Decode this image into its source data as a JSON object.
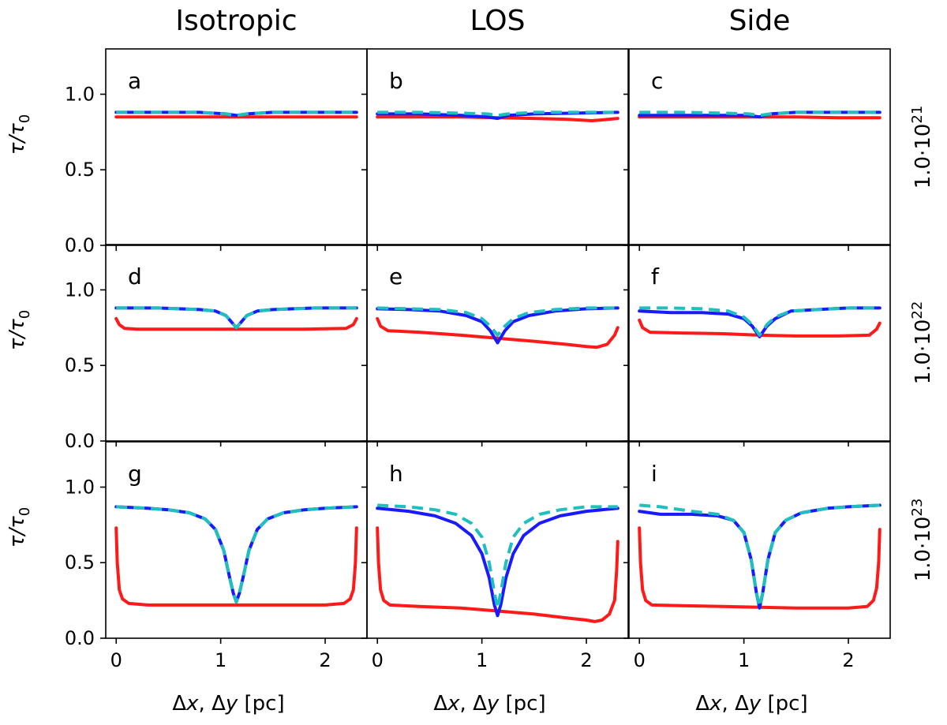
{
  "chart_data": {
    "type": "line",
    "layout": "3x3 grid",
    "column_titles": [
      "Isotropic",
      "LOS",
      "Side"
    ],
    "row_labels": [
      {
        "mantissa": "1.0",
        "exponent": "21",
        "text": "1.0·10^21"
      },
      {
        "mantissa": "1.0",
        "exponent": "22",
        "text": "1.0·10^22"
      },
      {
        "mantissa": "1.0",
        "exponent": "23",
        "text": "1.0·10^23"
      }
    ],
    "ylabel": {
      "base": "τ/τ",
      "subscript": "0"
    },
    "xlabel": {
      "prefix": "Δ",
      "var1": "x",
      "sep": ", Δ",
      "var2": "y",
      "unit": " [pc]"
    },
    "xlim": [
      -0.1,
      2.4
    ],
    "ylim": [
      0.0,
      1.3
    ],
    "xticks": [
      0,
      1,
      2
    ],
    "xtick_labels": [
      "0",
      "1",
      "2"
    ],
    "yticks": [
      0.0,
      0.5,
      1.0
    ],
    "ytick_labels": [
      "0.0",
      "0.5",
      "1.0"
    ],
    "series_styles": [
      {
        "name": "red",
        "color": "#ff1a1a",
        "dash": "solid"
      },
      {
        "name": "blue",
        "color": "#1a1aff",
        "dash": "solid"
      },
      {
        "name": "cyan",
        "color": "#1fbfbf",
        "dash": "dashed"
      }
    ],
    "panels": [
      {
        "letter": "a",
        "row": 0,
        "col": 0,
        "series": [
          {
            "name": "red",
            "x": [
              0,
              0.3,
              0.6,
              0.9,
              1.15,
              1.4,
              1.7,
              2.0,
              2.3
            ],
            "y": [
              0.85,
              0.85,
              0.85,
              0.85,
              0.85,
              0.85,
              0.85,
              0.85,
              0.85
            ]
          },
          {
            "name": "blue",
            "x": [
              0,
              0.4,
              0.8,
              1.05,
              1.15,
              1.25,
              1.5,
              1.9,
              2.3
            ],
            "y": [
              0.88,
              0.88,
              0.88,
              0.87,
              0.86,
              0.87,
              0.88,
              0.88,
              0.88
            ]
          },
          {
            "name": "cyan",
            "x": [
              0,
              0.4,
              0.8,
              1.05,
              1.15,
              1.25,
              1.5,
              1.9,
              2.3
            ],
            "y": [
              0.88,
              0.88,
              0.88,
              0.87,
              0.86,
              0.87,
              0.88,
              0.88,
              0.88
            ]
          }
        ]
      },
      {
        "letter": "b",
        "row": 0,
        "col": 1,
        "series": [
          {
            "name": "red",
            "x": [
              0,
              0.4,
              0.8,
              1.15,
              1.5,
              1.8,
              2.05,
              2.15,
              2.3
            ],
            "y": [
              0.85,
              0.85,
              0.85,
              0.845,
              0.84,
              0.835,
              0.825,
              0.83,
              0.84
            ]
          },
          {
            "name": "blue",
            "x": [
              0,
              0.4,
              0.8,
              1.05,
              1.15,
              1.25,
              1.5,
              1.9,
              2.3
            ],
            "y": [
              0.87,
              0.87,
              0.86,
              0.85,
              0.84,
              0.86,
              0.87,
              0.875,
              0.88
            ]
          },
          {
            "name": "cyan",
            "x": [
              0,
              0.4,
              0.8,
              1.05,
              1.15,
              1.25,
              1.5,
              1.9,
              2.3
            ],
            "y": [
              0.88,
              0.88,
              0.875,
              0.87,
              0.86,
              0.87,
              0.88,
              0.88,
              0.88
            ]
          }
        ]
      },
      {
        "letter": "c",
        "row": 0,
        "col": 2,
        "series": [
          {
            "name": "red",
            "x": [
              0,
              0.4,
              0.8,
              1.15,
              1.5,
              1.9,
              2.3
            ],
            "y": [
              0.85,
              0.85,
              0.85,
              0.85,
              0.85,
              0.845,
              0.845
            ]
          },
          {
            "name": "blue",
            "x": [
              0,
              0.4,
              0.8,
              1.05,
              1.15,
              1.25,
              1.5,
              1.9,
              2.3
            ],
            "y": [
              0.86,
              0.86,
              0.86,
              0.86,
              0.85,
              0.87,
              0.88,
              0.88,
              0.88
            ]
          },
          {
            "name": "cyan",
            "x": [
              0,
              0.4,
              0.8,
              1.05,
              1.15,
              1.25,
              1.5,
              1.9,
              2.3
            ],
            "y": [
              0.88,
              0.88,
              0.875,
              0.87,
              0.86,
              0.87,
              0.88,
              0.88,
              0.88
            ]
          }
        ]
      },
      {
        "letter": "d",
        "row": 1,
        "col": 0,
        "series": [
          {
            "name": "red",
            "x": [
              0,
              0.03,
              0.08,
              0.2,
              0.6,
              1.0,
              1.15,
              1.4,
              1.8,
              2.2,
              2.27,
              2.3
            ],
            "y": [
              0.81,
              0.77,
              0.745,
              0.74,
              0.74,
              0.74,
              0.74,
              0.74,
              0.74,
              0.745,
              0.77,
              0.81
            ]
          },
          {
            "name": "blue",
            "x": [
              0,
              0.4,
              0.8,
              0.95,
              1.05,
              1.1,
              1.15,
              1.2,
              1.25,
              1.35,
              1.5,
              1.9,
              2.3
            ],
            "y": [
              0.88,
              0.88,
              0.87,
              0.86,
              0.83,
              0.79,
              0.75,
              0.79,
              0.83,
              0.86,
              0.87,
              0.88,
              0.88
            ]
          },
          {
            "name": "cyan",
            "x": [
              0,
              0.4,
              0.8,
              0.95,
              1.05,
              1.1,
              1.15,
              1.2,
              1.25,
              1.35,
              1.5,
              1.9,
              2.3
            ],
            "y": [
              0.88,
              0.88,
              0.87,
              0.86,
              0.83,
              0.79,
              0.75,
              0.79,
              0.83,
              0.86,
              0.87,
              0.88,
              0.88
            ]
          }
        ]
      },
      {
        "letter": "e",
        "row": 1,
        "col": 1,
        "series": [
          {
            "name": "red",
            "x": [
              0,
              0.03,
              0.1,
              0.4,
              0.8,
              1.15,
              1.5,
              1.8,
              2.0,
              2.1,
              2.2,
              2.27,
              2.3
            ],
            "y": [
              0.81,
              0.76,
              0.73,
              0.72,
              0.7,
              0.68,
              0.66,
              0.64,
              0.625,
              0.62,
              0.64,
              0.7,
              0.75
            ]
          },
          {
            "name": "blue",
            "x": [
              0,
              0.3,
              0.6,
              0.85,
              1.0,
              1.08,
              1.15,
              1.22,
              1.3,
              1.45,
              1.7,
              2.0,
              2.3
            ],
            "y": [
              0.875,
              0.87,
              0.86,
              0.83,
              0.79,
              0.73,
              0.65,
              0.73,
              0.79,
              0.83,
              0.86,
              0.875,
              0.88
            ]
          },
          {
            "name": "cyan",
            "x": [
              0,
              0.3,
              0.6,
              0.85,
              1.0,
              1.08,
              1.15,
              1.22,
              1.3,
              1.45,
              1.7,
              2.0,
              2.3
            ],
            "y": [
              0.88,
              0.875,
              0.87,
              0.85,
              0.81,
              0.76,
              0.7,
              0.76,
              0.81,
              0.85,
              0.87,
              0.88,
              0.88
            ]
          }
        ]
      },
      {
        "letter": "f",
        "row": 1,
        "col": 2,
        "series": [
          {
            "name": "red",
            "x": [
              0,
              0.03,
              0.1,
              0.4,
              0.8,
              1.15,
              1.5,
              1.9,
              2.2,
              2.27,
              2.3
            ],
            "y": [
              0.8,
              0.75,
              0.72,
              0.715,
              0.71,
              0.7,
              0.695,
              0.695,
              0.7,
              0.74,
              0.78
            ]
          },
          {
            "name": "blue",
            "x": [
              0,
              0.3,
              0.6,
              0.85,
              1.0,
              1.08,
              1.15,
              1.22,
              1.3,
              1.45,
              1.7,
              2.0,
              2.3
            ],
            "y": [
              0.86,
              0.85,
              0.85,
              0.84,
              0.81,
              0.76,
              0.69,
              0.76,
              0.81,
              0.86,
              0.87,
              0.88,
              0.88
            ]
          },
          {
            "name": "cyan",
            "x": [
              0,
              0.3,
              0.6,
              0.85,
              1.0,
              1.08,
              1.15,
              1.22,
              1.3,
              1.45,
              1.7,
              2.0,
              2.3
            ],
            "y": [
              0.88,
              0.88,
              0.875,
              0.86,
              0.82,
              0.77,
              0.7,
              0.77,
              0.82,
              0.86,
              0.87,
              0.88,
              0.88
            ]
          }
        ]
      },
      {
        "letter": "g",
        "row": 2,
        "col": 0,
        "series": [
          {
            "name": "red",
            "x": [
              0,
              0.01,
              0.03,
              0.06,
              0.12,
              0.3,
              0.8,
              1.15,
              1.5,
              2.0,
              2.18,
              2.24,
              2.27,
              2.29,
              2.3
            ],
            "y": [
              0.73,
              0.5,
              0.32,
              0.26,
              0.23,
              0.22,
              0.22,
              0.22,
              0.22,
              0.22,
              0.23,
              0.26,
              0.32,
              0.5,
              0.73
            ]
          },
          {
            "name": "blue",
            "x": [
              0,
              0.3,
              0.5,
              0.7,
              0.85,
              0.95,
              1.03,
              1.08,
              1.12,
              1.15,
              1.18,
              1.22,
              1.27,
              1.35,
              1.45,
              1.6,
              1.8,
              2.0,
              2.3
            ],
            "y": [
              0.87,
              0.86,
              0.85,
              0.83,
              0.79,
              0.72,
              0.58,
              0.42,
              0.3,
              0.24,
              0.3,
              0.42,
              0.58,
              0.72,
              0.79,
              0.83,
              0.85,
              0.86,
              0.87
            ]
          },
          {
            "name": "cyan",
            "x": [
              0,
              0.3,
              0.5,
              0.7,
              0.85,
              0.95,
              1.03,
              1.08,
              1.12,
              1.15,
              1.18,
              1.22,
              1.27,
              1.35,
              1.45,
              1.6,
              1.8,
              2.0,
              2.3
            ],
            "y": [
              0.87,
              0.86,
              0.85,
              0.83,
              0.79,
              0.72,
              0.58,
              0.42,
              0.3,
              0.24,
              0.3,
              0.42,
              0.58,
              0.72,
              0.79,
              0.83,
              0.85,
              0.86,
              0.87
            ]
          }
        ]
      },
      {
        "letter": "h",
        "row": 2,
        "col": 1,
        "series": [
          {
            "name": "red",
            "x": [
              0,
              0.01,
              0.03,
              0.06,
              0.12,
              0.4,
              0.8,
              1.15,
              1.5,
              1.8,
              2.0,
              2.08,
              2.15,
              2.22,
              2.27,
              2.29,
              2.3
            ],
            "y": [
              0.73,
              0.5,
              0.32,
              0.25,
              0.22,
              0.21,
              0.2,
              0.18,
              0.16,
              0.135,
              0.12,
              0.11,
              0.12,
              0.16,
              0.25,
              0.45,
              0.64
            ]
          },
          {
            "name": "blue",
            "x": [
              0,
              0.3,
              0.55,
              0.75,
              0.9,
              1.0,
              1.07,
              1.12,
              1.15,
              1.18,
              1.23,
              1.3,
              1.4,
              1.55,
              1.75,
              2.0,
              2.3
            ],
            "y": [
              0.86,
              0.84,
              0.81,
              0.76,
              0.68,
              0.56,
              0.4,
              0.22,
              0.15,
              0.22,
              0.4,
              0.56,
              0.68,
              0.76,
              0.81,
              0.84,
              0.86
            ]
          },
          {
            "name": "cyan",
            "x": [
              0,
              0.3,
              0.55,
              0.75,
              0.9,
              1.0,
              1.07,
              1.12,
              1.15,
              1.18,
              1.23,
              1.3,
              1.4,
              1.55,
              1.75,
              2.0,
              2.3
            ],
            "y": [
              0.88,
              0.87,
              0.85,
              0.82,
              0.76,
              0.67,
              0.5,
              0.3,
              0.2,
              0.3,
              0.5,
              0.67,
              0.76,
              0.82,
              0.85,
              0.87,
              0.87
            ]
          }
        ]
      },
      {
        "letter": "i",
        "row": 2,
        "col": 2,
        "series": [
          {
            "name": "red",
            "x": [
              0,
              0.01,
              0.03,
              0.06,
              0.12,
              0.4,
              0.8,
              1.15,
              1.5,
              2.0,
              2.18,
              2.24,
              2.27,
              2.29,
              2.3
            ],
            "y": [
              0.73,
              0.5,
              0.32,
              0.25,
              0.22,
              0.215,
              0.21,
              0.205,
              0.2,
              0.2,
              0.21,
              0.25,
              0.33,
              0.5,
              0.72
            ]
          },
          {
            "name": "blue",
            "x": [
              0,
              0.2,
              0.5,
              0.75,
              0.9,
              1.0,
              1.07,
              1.12,
              1.15,
              1.18,
              1.23,
              1.3,
              1.4,
              1.55,
              1.8,
              2.0,
              2.3
            ],
            "y": [
              0.84,
              0.82,
              0.82,
              0.81,
              0.78,
              0.7,
              0.52,
              0.3,
              0.2,
              0.3,
              0.52,
              0.7,
              0.78,
              0.83,
              0.86,
              0.87,
              0.88
            ]
          },
          {
            "name": "cyan",
            "x": [
              0,
              0.2,
              0.5,
              0.75,
              0.9,
              1.0,
              1.07,
              1.12,
              1.15,
              1.18,
              1.23,
              1.3,
              1.4,
              1.55,
              1.8,
              2.0,
              2.3
            ],
            "y": [
              0.88,
              0.87,
              0.84,
              0.82,
              0.78,
              0.7,
              0.52,
              0.3,
              0.21,
              0.3,
              0.52,
              0.7,
              0.78,
              0.83,
              0.86,
              0.87,
              0.88
            ]
          }
        ]
      }
    ]
  }
}
